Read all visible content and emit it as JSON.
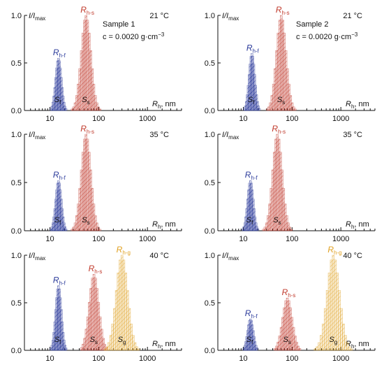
{
  "colors": {
    "fast": "#2a3a9a",
    "slow": "#c0392b",
    "giant": "#e0a020",
    "axis": "#111111"
  },
  "panels_text": {
    "ylabel_main": "I/I",
    "ylabel_sub": "max",
    "xlabel_main": "R",
    "xlabel_sub": "h",
    "xlabel_unit": ", nm",
    "rh_main": "R",
    "s_main": "S"
  },
  "chart_data": [
    {
      "type": "bar",
      "name": "panel-1-21C",
      "temperature": "21 °C",
      "sample": "Sample 1",
      "concentration": "c = 0.0020 g·cm",
      "concentration_exp": "−3",
      "x_scale": "log",
      "xlim": [
        3,
        5000
      ],
      "ylim": [
        0,
        1.0
      ],
      "x_ticks": [
        "10",
        "100",
        "1000"
      ],
      "y_ticks": [
        "0.0",
        "0.5",
        "1.0"
      ],
      "series": [
        {
          "label": "h-f",
          "s_label": "f",
          "color": "fast",
          "center": 15,
          "peak": 0.55,
          "width": 0.06
        },
        {
          "label": "h-s",
          "s_label": "s",
          "color": "slow",
          "center": 55,
          "peak": 1.0,
          "width": 0.1
        }
      ]
    },
    {
      "type": "bar",
      "name": "panel-2-21C",
      "temperature": "21 °C",
      "sample": "Sample 2",
      "concentration": "c = 0.0020 g·cm",
      "concentration_exp": "−3",
      "x_scale": "log",
      "xlim": [
        3,
        5000
      ],
      "ylim": [
        0,
        1.0
      ],
      "x_ticks": [
        "10",
        "100",
        "1000"
      ],
      "y_ticks": [
        "0.0",
        "0.5",
        "1.0"
      ],
      "series": [
        {
          "label": "h-f",
          "s_label": "f",
          "color": "fast",
          "center": 15,
          "peak": 0.6,
          "width": 0.06
        },
        {
          "label": "h-s",
          "s_label": "s",
          "color": "slow",
          "center": 60,
          "peak": 1.0,
          "width": 0.1
        }
      ]
    },
    {
      "type": "bar",
      "name": "panel-3-35C",
      "temperature": "35 °C",
      "x_scale": "log",
      "xlim": [
        3,
        5000
      ],
      "ylim": [
        0,
        1.0
      ],
      "x_ticks": [
        "10",
        "100",
        "1000"
      ],
      "y_ticks": [
        "0.0",
        "0.5",
        "1.0"
      ],
      "series": [
        {
          "label": "h-f",
          "s_label": "f",
          "color": "fast",
          "center": 15,
          "peak": 0.52,
          "width": 0.06
        },
        {
          "label": "h-s",
          "s_label": "s",
          "color": "slow",
          "center": 55,
          "peak": 1.0,
          "width": 0.1
        }
      ]
    },
    {
      "type": "bar",
      "name": "panel-4-35C",
      "temperature": "35 °C",
      "x_scale": "log",
      "xlim": [
        3,
        5000
      ],
      "ylim": [
        0,
        1.0
      ],
      "x_ticks": [
        "10",
        "100",
        "1000"
      ],
      "y_ticks": [
        "0.0",
        "0.5",
        "1.0"
      ],
      "series": [
        {
          "label": "h-f",
          "s_label": "f",
          "color": "fast",
          "center": 14,
          "peak": 0.52,
          "width": 0.06
        },
        {
          "label": "h-s",
          "s_label": "s",
          "color": "slow",
          "center": 50,
          "peak": 1.0,
          "width": 0.1
        }
      ]
    },
    {
      "type": "bar",
      "name": "panel-5-40C",
      "temperature": "40 °C",
      "x_scale": "log",
      "xlim": [
        3,
        5000
      ],
      "ylim": [
        0,
        1.0
      ],
      "x_ticks": [
        "10",
        "100",
        "1000"
      ],
      "y_ticks": [
        "0.0",
        "0.5",
        "1.0"
      ],
      "series": [
        {
          "label": "h-f",
          "s_label": "f",
          "color": "fast",
          "center": 15,
          "peak": 0.68,
          "width": 0.06
        },
        {
          "label": "h-s",
          "s_label": "s",
          "color": "slow",
          "center": 80,
          "peak": 0.8,
          "width": 0.1
        },
        {
          "label": "h-g",
          "s_label": "g",
          "color": "giant",
          "center": 300,
          "peak": 1.0,
          "width": 0.12
        }
      ]
    },
    {
      "type": "bar",
      "name": "panel-6-40C",
      "temperature": "40 °C",
      "x_scale": "log",
      "xlim": [
        3,
        5000
      ],
      "ylim": [
        0,
        1.0
      ],
      "x_ticks": [
        "10",
        "100",
        "1000"
      ],
      "y_ticks": [
        "0.0",
        "0.5",
        "1.0"
      ],
      "series": [
        {
          "label": "h-f",
          "s_label": "f",
          "color": "fast",
          "center": 14,
          "peak": 0.33,
          "width": 0.06
        },
        {
          "label": "h-s",
          "s_label": "s",
          "color": "slow",
          "center": 80,
          "peak": 0.55,
          "width": 0.1
        },
        {
          "label": "h-g",
          "s_label": "g",
          "color": "giant",
          "center": 700,
          "peak": 1.0,
          "width": 0.13
        }
      ]
    }
  ]
}
